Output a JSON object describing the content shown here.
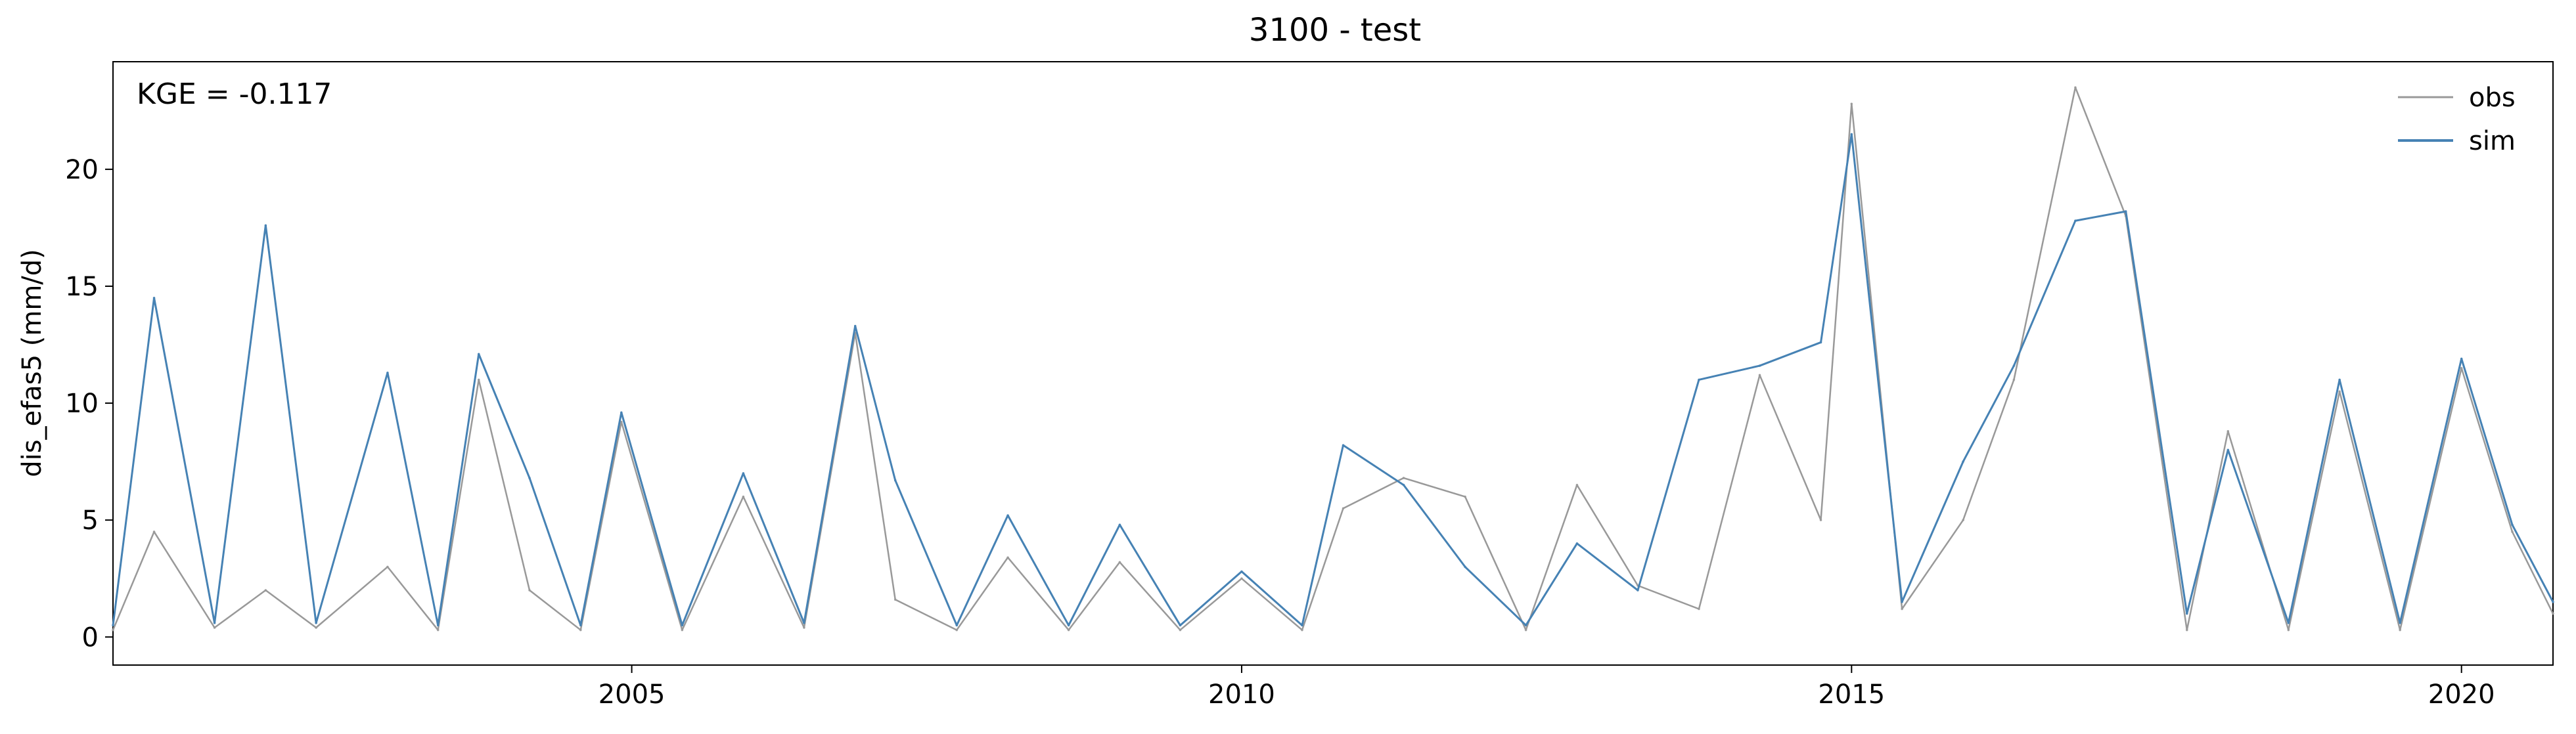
{
  "chart_data": {
    "type": "line",
    "title": "3100 - test",
    "xlabel": "",
    "ylabel": "dis_efas5 (mm/d)",
    "annotation": "KGE = -0.117",
    "xlim": [
      "2000-10-01",
      "2020-10-01"
    ],
    "ylim": [
      -1.2,
      24.6
    ],
    "x_ticks": [
      "2005",
      "2010",
      "2015",
      "2020"
    ],
    "y_ticks": [
      "0",
      "5",
      "10",
      "15",
      "20"
    ],
    "legend_position": "top-right",
    "grid": false,
    "colors": {
      "obs": "#999999",
      "sim": "#4682b4"
    },
    "series": [
      {
        "name": "obs",
        "x": [
          "2000-10-01",
          "2001-02-01",
          "2001-08-01",
          "2002-01-01",
          "2002-06-01",
          "2003-01-01",
          "2003-06-01",
          "2003-10-01",
          "2004-03-01",
          "2004-08-01",
          "2004-12-01",
          "2005-06-01",
          "2005-12-01",
          "2006-06-01",
          "2006-11-01",
          "2007-03-01",
          "2007-09-01",
          "2008-02-01",
          "2008-08-01",
          "2009-01-01",
          "2009-07-01",
          "2010-01-01",
          "2010-07-01",
          "2010-11-01",
          "2011-05-01",
          "2011-11-01",
          "2012-05-01",
          "2012-10-01",
          "2013-04-01",
          "2013-10-01",
          "2014-04-01",
          "2014-10-01",
          "2015-01-01",
          "2015-06-01",
          "2015-12-01",
          "2016-05-01",
          "2016-11-01",
          "2017-04-01",
          "2017-10-01",
          "2018-02-01",
          "2018-08-01",
          "2019-01-01",
          "2019-07-01",
          "2020-01-01",
          "2020-06-01",
          "2020-10-01"
        ],
        "y": [
          0.3,
          4.5,
          0.4,
          2.0,
          0.4,
          3.0,
          0.3,
          11.0,
          2.0,
          0.3,
          9.2,
          0.3,
          6.0,
          0.4,
          13.0,
          1.6,
          0.3,
          3.4,
          0.3,
          3.2,
          0.3,
          2.5,
          0.3,
          5.5,
          6.8,
          6.0,
          0.3,
          6.5,
          2.2,
          1.2,
          11.2,
          5.0,
          22.8,
          1.2,
          5.0,
          11.0,
          23.5,
          18.0,
          0.3,
          8.8,
          0.3,
          10.5,
          0.3,
          11.5,
          4.5,
          1.0
        ]
      },
      {
        "name": "sim",
        "x": [
          "2000-10-01",
          "2001-02-01",
          "2001-08-01",
          "2002-01-01",
          "2002-06-01",
          "2003-01-01",
          "2003-06-01",
          "2003-10-01",
          "2004-03-01",
          "2004-08-01",
          "2004-12-01",
          "2005-06-01",
          "2005-12-01",
          "2006-06-01",
          "2006-11-01",
          "2007-03-01",
          "2007-09-01",
          "2008-02-01",
          "2008-08-01",
          "2009-01-01",
          "2009-07-01",
          "2010-01-01",
          "2010-07-01",
          "2010-11-01",
          "2011-05-01",
          "2011-11-01",
          "2012-05-01",
          "2012-10-01",
          "2013-04-01",
          "2013-10-01",
          "2014-04-01",
          "2014-10-01",
          "2015-01-01",
          "2015-06-01",
          "2015-12-01",
          "2016-05-01",
          "2016-11-01",
          "2017-04-01",
          "2017-10-01",
          "2018-02-01",
          "2018-08-01",
          "2019-01-01",
          "2019-07-01",
          "2020-01-01",
          "2020-06-01",
          "2020-10-01"
        ],
        "y": [
          0.5,
          14.5,
          0.6,
          17.6,
          0.6,
          11.3,
          0.5,
          12.1,
          6.8,
          0.5,
          9.6,
          0.5,
          7.0,
          0.6,
          13.3,
          6.7,
          0.5,
          5.2,
          0.5,
          4.8,
          0.5,
          2.8,
          0.5,
          8.2,
          6.5,
          3.0,
          0.5,
          4.0,
          2.0,
          11.0,
          11.6,
          12.6,
          21.5,
          1.5,
          7.5,
          11.6,
          17.8,
          18.2,
          1.0,
          8.0,
          0.6,
          11.0,
          0.6,
          11.9,
          4.8,
          1.5
        ]
      }
    ]
  }
}
